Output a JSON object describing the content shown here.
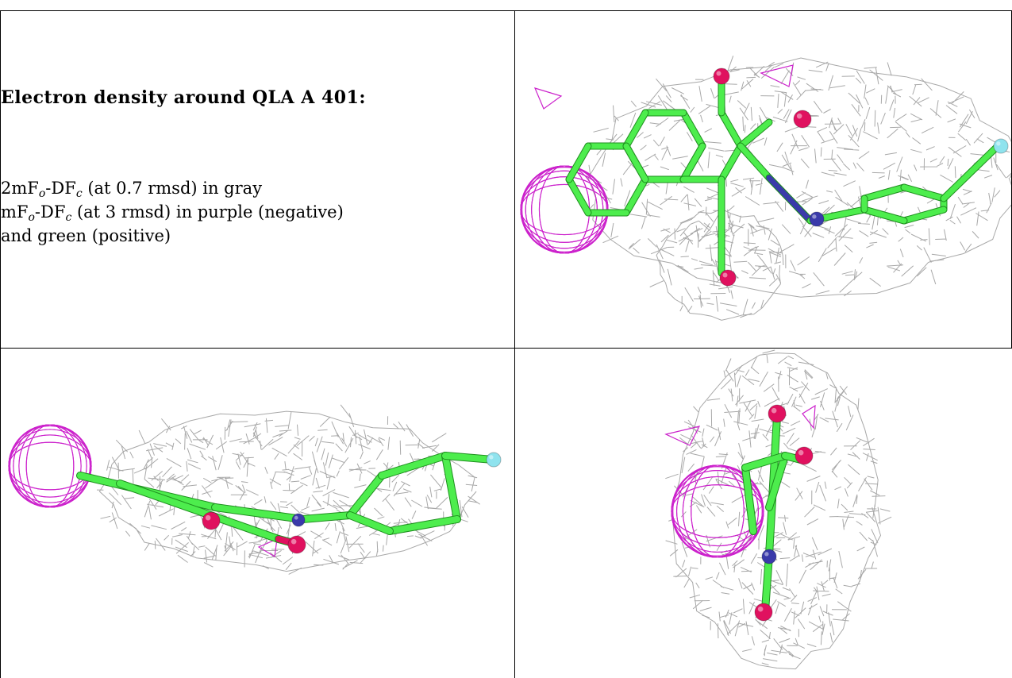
{
  "caption": {
    "title": "Electron density around QLA A 401:",
    "line1": {
      "pre": "2mF",
      "sub_o": "o",
      "mid": "-DF",
      "sub_c": "c",
      "post": " (at 0.7 rmsd) in gray"
    },
    "line2": {
      "pre": "mF",
      "sub_o": "o",
      "mid": "-DF",
      "sub_c": "c",
      "post": " (at 3 rmsd) in purple (negative)"
    },
    "line3": "and green (positive)"
  },
  "colors": {
    "mesh_2fofc": "#a8a8a8",
    "mesh_negative": "#cc22cc",
    "carbon": "#4ded4d",
    "oxygen": "#e0115f",
    "nitrogen": "#3a3aaa",
    "fluorine": "#8fe3ee"
  },
  "panels": [
    {
      "name": "view-top-right"
    },
    {
      "name": "view-bottom-left"
    },
    {
      "name": "view-bottom-right"
    }
  ]
}
